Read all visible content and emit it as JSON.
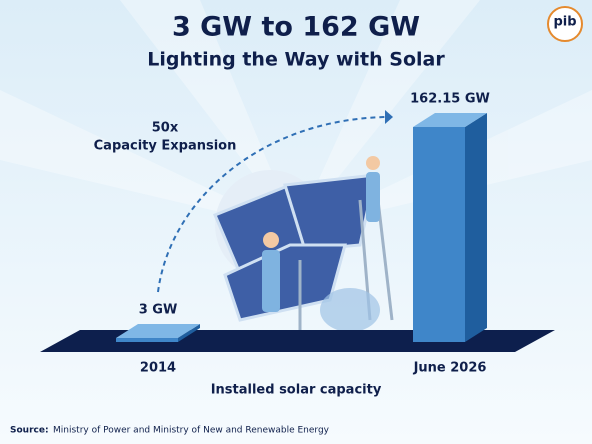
{
  "logo": "pib",
  "chart_data": {
    "type": "bar",
    "title": "3 GW to 162 GW",
    "subtitle": "Lighting the Way with Solar",
    "annotation": [
      "50x",
      "Capacity Expansion"
    ],
    "categories": [
      "2014",
      "June 2026"
    ],
    "values": [
      3,
      162.15
    ],
    "value_labels": [
      "3 GW",
      "162.15 GW"
    ],
    "x_label": "Installed solar capacity",
    "colors": {
      "front": "#3f86c9",
      "side": "#1f5e9e",
      "top": "#7fb7e6"
    },
    "source_label": "Source:",
    "source": "Ministry of Power and Ministry of New and Renewable Energy"
  }
}
